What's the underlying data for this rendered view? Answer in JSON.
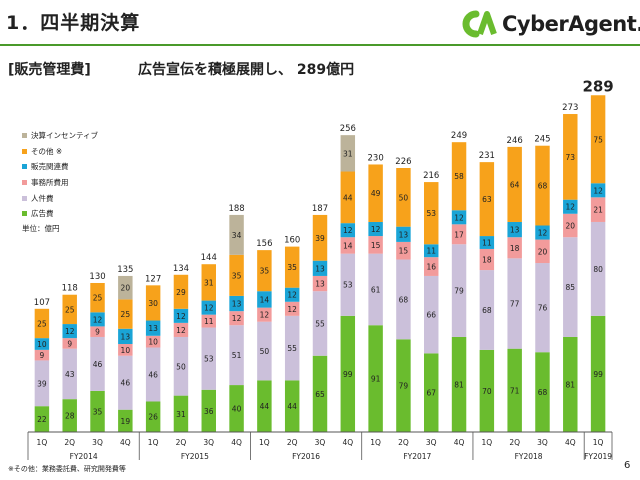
{
  "header": {
    "title": "1．四半期決算",
    "logo_text": "CyberAgent.",
    "section_label": "[販売管理費]",
    "subtitle": "広告宣伝を積極展開し、 289億円"
  },
  "footer": {
    "footnote": "※その他：業務委託費、研究開発費等",
    "page_number": "6"
  },
  "legend": {
    "items": [
      {
        "label": "決算インセンティブ",
        "color": "#bcb39a"
      },
      {
        "label": "その他 ※",
        "color": "#f7a21b"
      },
      {
        "label": "販売関連費",
        "color": "#1aa4d6"
      },
      {
        "label": "事務所費用",
        "color": "#f29b9b"
      },
      {
        "label": "人件費",
        "color": "#cbc0da"
      },
      {
        "label": "広告費",
        "color": "#6abc2e"
      }
    ],
    "unit": "単位：億円"
  },
  "colors": {
    "brand_green": "#4a9a2a",
    "logo_green": "#6abc2e",
    "axis": "#555555"
  },
  "chart_data": {
    "type": "bar",
    "stacked": true,
    "categories": [
      "1Q",
      "2Q",
      "3Q",
      "4Q",
      "1Q",
      "2Q",
      "3Q",
      "4Q",
      "1Q",
      "2Q",
      "3Q",
      "4Q",
      "1Q",
      "2Q",
      "3Q",
      "4Q",
      "1Q",
      "2Q",
      "3Q",
      "4Q",
      "1Q"
    ],
    "fiscal_years": [
      {
        "label": "FY2014",
        "quarters": 4
      },
      {
        "label": "FY2015",
        "quarters": 4
      },
      {
        "label": "FY2016",
        "quarters": 4
      },
      {
        "label": "FY2017",
        "quarters": 4
      },
      {
        "label": "FY2018",
        "quarters": 4
      },
      {
        "label": "FY2019",
        "quarters": 1
      }
    ],
    "series": [
      {
        "name": "広告費",
        "color": "#6abc2e",
        "values": [
          22,
          28,
          35,
          19,
          26,
          31,
          36,
          40,
          44,
          44,
          65,
          99,
          91,
          79,
          67,
          81,
          70,
          71,
          68,
          81,
          99
        ]
      },
      {
        "name": "人件費",
        "color": "#cbc0da",
        "values": [
          39,
          43,
          46,
          46,
          46,
          50,
          53,
          51,
          50,
          55,
          55,
          53,
          61,
          68,
          66,
          79,
          68,
          77,
          76,
          85,
          80
        ]
      },
      {
        "name": "事務所費用",
        "color": "#f29b9b",
        "values": [
          9,
          9,
          9,
          10,
          10,
          12,
          11,
          12,
          12,
          12,
          13,
          14,
          15,
          15,
          16,
          17,
          18,
          18,
          20,
          20,
          21
        ]
      },
      {
        "name": "販売関連費",
        "color": "#1aa4d6",
        "values": [
          10,
          12,
          12,
          13,
          13,
          12,
          12,
          13,
          14,
          12,
          13,
          12,
          12,
          13,
          11,
          12,
          11,
          13,
          12,
          12,
          12
        ]
      },
      {
        "name": "その他 ※",
        "color": "#f7a21b",
        "values": [
          25,
          25,
          25,
          25,
          30,
          29,
          31,
          35,
          35,
          35,
          39,
          44,
          49,
          50,
          53,
          58,
          63,
          64,
          68,
          73,
          75
        ]
      },
      {
        "name": "決算インセンティブ",
        "color": "#bcb39a",
        "values": [
          0,
          0,
          0,
          20,
          0,
          0,
          0,
          34,
          0,
          0,
          0,
          31,
          0,
          0,
          0,
          0,
          0,
          0,
          0,
          0,
          0
        ]
      }
    ],
    "totals": [
      107,
      118,
      130,
      135,
      127,
      134,
      144,
      188,
      156,
      160,
      187,
      256,
      230,
      226,
      216,
      249,
      231,
      246,
      245,
      273,
      289
    ],
    "ylim": [
      0,
      300
    ],
    "grid": false,
    "legend_position": "left"
  }
}
